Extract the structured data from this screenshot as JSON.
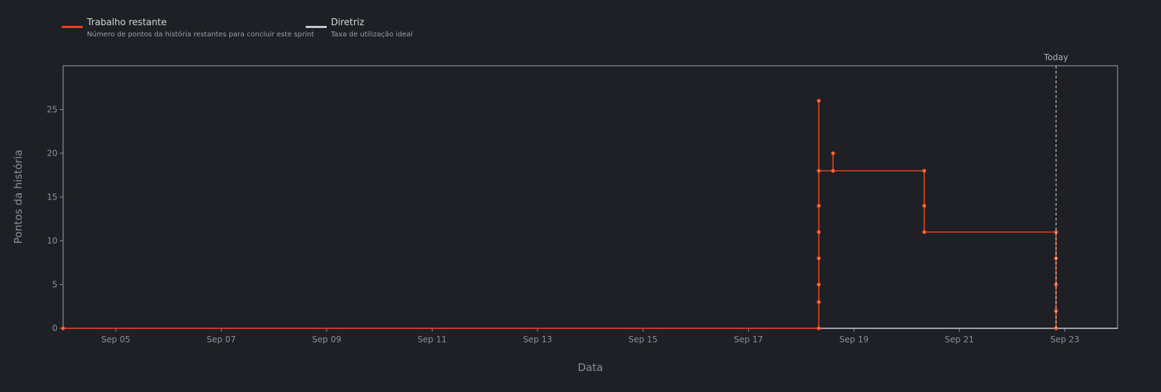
{
  "legend": {
    "items": [
      {
        "name": "Trabalho restante",
        "description": "Número de pontos da história restantes para concluir este sprint",
        "color": "#e8461e"
      },
      {
        "name": "Diretriz",
        "description": "Taxa de utilização ideal",
        "color": "#c9ccd2"
      }
    ]
  },
  "chart_data": {
    "type": "line",
    "title": "",
    "xlabel": "Data",
    "ylabel": "Pontos da história",
    "xlim": [
      "2023-09-04",
      "2023-09-24"
    ],
    "ylim": [
      0,
      30
    ],
    "yticks": [
      0,
      5,
      10,
      15,
      20,
      25
    ],
    "xticks": [
      "2023-09-05",
      "2023-09-07",
      "2023-09-09",
      "2023-09-11",
      "2023-09-13",
      "2023-09-15",
      "2023-09-17",
      "2023-09-19",
      "2023-09-21",
      "2023-09-23"
    ],
    "xtick_labels": [
      "Sep 05",
      "Sep 07",
      "Sep 09",
      "Sep 11",
      "Sep 13",
      "Sep 15",
      "Sep 17",
      "Sep 19",
      "Sep 21",
      "Sep 23"
    ],
    "grid": false,
    "today": {
      "label": "Today",
      "x": "2023-09-22 20:00"
    },
    "series": [
      {
        "name": "Trabalho restante",
        "color": "#e8461e",
        "line_shape": "step",
        "points": [
          {
            "x": "2023-09-04 00:00",
            "y": 0
          },
          {
            "x": "2023-09-18 08:00",
            "y": 0
          },
          {
            "x": "2023-09-18 08:00",
            "y": 3
          },
          {
            "x": "2023-09-18 08:00",
            "y": 5
          },
          {
            "x": "2023-09-18 08:00",
            "y": 8
          },
          {
            "x": "2023-09-18 08:00",
            "y": 11
          },
          {
            "x": "2023-09-18 08:00",
            "y": 14
          },
          {
            "x": "2023-09-18 08:00",
            "y": 26
          },
          {
            "x": "2023-09-18 08:00",
            "y": 18
          },
          {
            "x": "2023-09-18 14:30",
            "y": 18
          },
          {
            "x": "2023-09-18 14:30",
            "y": 20
          },
          {
            "x": "2023-09-18 14:30",
            "y": 18
          },
          {
            "x": "2023-09-20 08:00",
            "y": 18
          },
          {
            "x": "2023-09-20 08:00",
            "y": 14
          },
          {
            "x": "2023-09-20 08:00",
            "y": 11
          },
          {
            "x": "2023-09-22 20:00",
            "y": 11
          },
          {
            "x": "2023-09-22 20:00",
            "y": 8
          },
          {
            "x": "2023-09-22 20:00",
            "y": 5
          },
          {
            "x": "2023-09-22 20:00",
            "y": 2
          },
          {
            "x": "2023-09-22 20:00",
            "y": 0
          }
        ]
      },
      {
        "name": "Diretriz",
        "color": "#c9ccd2",
        "points": [
          {
            "x": "2023-09-18 08:00",
            "y": 0
          },
          {
            "x": "2023-09-24 00:00",
            "y": 0
          }
        ]
      }
    ]
  }
}
